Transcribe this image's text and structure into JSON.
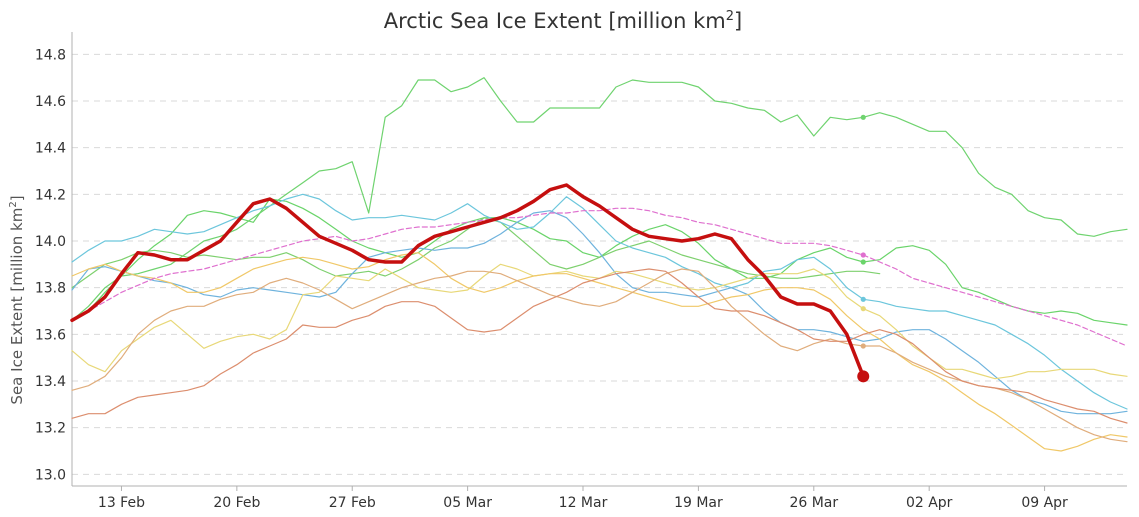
{
  "chart_data": {
    "type": "line",
    "title": "Arctic Sea Ice Extent [million km",
    "title_sup": "2",
    "title_end": "]",
    "ylabel": "Sea Ice Extent [million km",
    "ylabel_sup": "2",
    "ylabel_end": "]",
    "ylim": [
      12.95,
      14.87
    ],
    "yticks": [
      "13.0",
      "13.2",
      "13.4",
      "13.6",
      "13.8",
      "14.0",
      "14.2",
      "14.4",
      "14.6",
      "14.8"
    ],
    "xlim": [
      0,
      64
    ],
    "xticks": [
      {
        "day": 3,
        "label": "13 Feb"
      },
      {
        "day": 10,
        "label": "20 Feb"
      },
      {
        "day": 17,
        "label": "27 Feb"
      },
      {
        "day": 24,
        "label": "05 Mar"
      },
      {
        "day": 31,
        "label": "12 Mar"
      },
      {
        "day": 38,
        "label": "19 Mar"
      },
      {
        "day": 45,
        "label": "26 Mar"
      },
      {
        "day": 52,
        "label": "02 Apr"
      },
      {
        "day": 59,
        "label": "09 Apr"
      }
    ],
    "grid": true,
    "series": [
      {
        "color": "#6fd36f",
        "width": 1.2,
        "dash": "",
        "end_dot": true,
        "values": [
          13.66,
          13.72,
          13.8,
          13.85,
          13.86,
          13.88,
          13.9,
          13.95,
          14.0,
          14.02,
          14.05,
          14.1,
          14.15,
          14.2,
          14.25,
          14.3,
          14.31,
          14.34,
          14.12,
          14.53,
          14.58,
          14.69,
          14.69,
          14.64,
          14.66,
          14.7,
          14.6,
          14.51,
          14.51,
          14.57,
          14.57,
          14.57,
          14.57,
          14.66,
          14.69,
          14.68,
          14.68,
          14.68,
          14.66,
          14.6,
          14.59,
          14.57,
          14.56,
          14.51,
          14.54,
          14.45,
          14.53,
          14.52,
          14.53,
          14.55,
          14.53,
          14.5,
          14.47,
          14.47,
          14.4,
          14.29,
          14.23,
          14.2,
          14.13,
          14.1,
          14.09,
          14.03,
          14.02,
          14.04,
          14.05
        ]
      },
      {
        "color": "#6ad46a",
        "width": 1.2,
        "dash": "",
        "end_dot": true,
        "values": [
          13.66,
          13.7,
          13.78,
          13.85,
          13.92,
          13.98,
          14.03,
          14.11,
          14.13,
          14.12,
          14.1,
          14.08,
          14.18,
          14.17,
          14.14,
          14.1,
          14.05,
          14.0,
          13.97,
          13.95,
          13.93,
          13.95,
          14.0,
          14.05,
          14.08,
          14.1,
          14.1,
          14.08,
          14.05,
          14.01,
          14.0,
          13.95,
          13.93,
          13.98,
          14.02,
          14.05,
          14.07,
          14.04,
          13.99,
          13.92,
          13.88,
          13.84,
          13.84,
          13.86,
          13.92,
          13.95,
          13.97,
          13.93,
          13.91,
          13.92,
          13.97,
          13.98,
          13.96,
          13.9,
          13.8,
          13.78,
          13.75,
          13.72,
          13.7,
          13.69,
          13.7,
          13.69,
          13.66,
          13.65,
          13.64
        ]
      },
      {
        "color": "#7ed06e",
        "width": 1.2,
        "dash": "",
        "end_dot": false,
        "values": [
          13.8,
          13.85,
          13.9,
          13.92,
          13.95,
          13.96,
          13.95,
          13.93,
          13.94,
          13.93,
          13.92,
          13.93,
          13.93,
          13.95,
          13.92,
          13.88,
          13.85,
          13.86,
          13.87,
          13.85,
          13.88,
          13.92,
          13.97,
          14.0,
          14.05,
          14.1,
          14.08,
          14.02,
          13.96,
          13.9,
          13.88,
          13.9,
          13.93,
          13.96,
          13.98,
          14.0,
          13.97,
          13.94,
          13.92,
          13.9,
          13.88,
          13.86,
          13.85,
          13.84,
          13.84,
          13.85,
          13.86,
          13.87,
          13.87,
          13.86
        ]
      },
      {
        "color": "#6cc6dc",
        "width": 1.2,
        "dash": "",
        "end_dot": true,
        "values": [
          13.91,
          13.96,
          14.0,
          14.0,
          14.02,
          14.05,
          14.04,
          14.03,
          14.04,
          14.07,
          14.1,
          14.13,
          14.15,
          14.18,
          14.2,
          14.18,
          14.13,
          14.09,
          14.1,
          14.1,
          14.11,
          14.1,
          14.09,
          14.12,
          14.16,
          14.11,
          14.08,
          14.05,
          14.06,
          14.12,
          14.19,
          14.14,
          14.07,
          14.0,
          13.97,
          13.95,
          13.93,
          13.89,
          13.86,
          13.82,
          13.8,
          13.82,
          13.87,
          13.88,
          13.92,
          13.93,
          13.88,
          13.8,
          13.75,
          13.74,
          13.72,
          13.71,
          13.7,
          13.7,
          13.68,
          13.66,
          13.64,
          13.6,
          13.56,
          13.51,
          13.45,
          13.4,
          13.35,
          13.31,
          13.28
        ]
      },
      {
        "color": "#6fb3dd",
        "width": 1.2,
        "dash": "",
        "end_dot": false,
        "values": [
          13.79,
          13.88,
          13.89,
          13.87,
          13.85,
          13.83,
          13.82,
          13.8,
          13.77,
          13.76,
          13.79,
          13.8,
          13.79,
          13.78,
          13.77,
          13.76,
          13.78,
          13.86,
          13.93,
          13.95,
          13.96,
          13.97,
          13.96,
          13.97,
          13.97,
          13.99,
          14.03,
          14.08,
          14.12,
          14.13,
          14.1,
          14.03,
          13.95,
          13.86,
          13.8,
          13.78,
          13.78,
          13.77,
          13.76,
          13.78,
          13.8,
          13.77,
          13.7,
          13.65,
          13.62,
          13.62,
          13.61,
          13.59,
          13.57,
          13.58,
          13.61,
          13.62,
          13.62,
          13.58,
          13.53,
          13.48,
          13.42,
          13.36,
          13.32,
          13.3,
          13.27,
          13.26,
          13.26,
          13.26,
          13.27
        ]
      },
      {
        "color": "#e8d878",
        "width": 1.2,
        "dash": "",
        "end_dot": true,
        "values": [
          13.53,
          13.47,
          13.44,
          13.53,
          13.58,
          13.63,
          13.66,
          13.6,
          13.54,
          13.57,
          13.59,
          13.6,
          13.58,
          13.62,
          13.77,
          13.78,
          13.85,
          13.84,
          13.83,
          13.88,
          13.84,
          13.8,
          13.79,
          13.78,
          13.79,
          13.85,
          13.9,
          13.88,
          13.85,
          13.86,
          13.87,
          13.85,
          13.84,
          13.87,
          13.86,
          13.84,
          13.82,
          13.8,
          13.79,
          13.8,
          13.82,
          13.84,
          13.86,
          13.86,
          13.86,
          13.88,
          13.84,
          13.76,
          13.71,
          13.68,
          13.62,
          13.55,
          13.5,
          13.45,
          13.45,
          13.43,
          13.41,
          13.42,
          13.44,
          13.44,
          13.45,
          13.45,
          13.45,
          13.43,
          13.42
        ]
      },
      {
        "color": "#f0c868",
        "width": 1.2,
        "dash": "",
        "end_dot": false,
        "values": [
          13.85,
          13.88,
          13.9,
          13.87,
          13.85,
          13.84,
          13.82,
          13.78,
          13.78,
          13.8,
          13.84,
          13.88,
          13.9,
          13.92,
          13.93,
          13.92,
          13.9,
          13.88,
          13.89,
          13.92,
          13.94,
          13.95,
          13.9,
          13.84,
          13.8,
          13.78,
          13.8,
          13.83,
          13.85,
          13.86,
          13.86,
          13.84,
          13.82,
          13.8,
          13.78,
          13.76,
          13.74,
          13.72,
          13.72,
          13.74,
          13.76,
          13.77,
          13.79,
          13.8,
          13.8,
          13.79,
          13.75,
          13.68,
          13.62,
          13.58,
          13.52,
          13.47,
          13.44,
          13.4,
          13.35,
          13.3,
          13.26,
          13.21,
          13.16,
          13.11,
          13.1,
          13.12,
          13.15,
          13.17,
          13.16
        ]
      },
      {
        "color": "#e0ad7c",
        "width": 1.2,
        "dash": "",
        "end_dot": true,
        "values": [
          13.36,
          13.38,
          13.42,
          13.5,
          13.6,
          13.66,
          13.7,
          13.72,
          13.72,
          13.75,
          13.77,
          13.78,
          13.82,
          13.84,
          13.82,
          13.79,
          13.75,
          13.71,
          13.74,
          13.77,
          13.8,
          13.82,
          13.84,
          13.85,
          13.87,
          13.87,
          13.86,
          13.83,
          13.8,
          13.77,
          13.75,
          13.73,
          13.72,
          13.74,
          13.78,
          13.82,
          13.86,
          13.88,
          13.87,
          13.8,
          13.72,
          13.66,
          13.6,
          13.55,
          13.53,
          13.56,
          13.58,
          13.56,
          13.55,
          13.55,
          13.52,
          13.48,
          13.45,
          13.42,
          13.4,
          13.38,
          13.37,
          13.35,
          13.32,
          13.28,
          13.24,
          13.2,
          13.17,
          13.15,
          13.14
        ]
      },
      {
        "color": "#dc8e6e",
        "width": 1.2,
        "dash": "",
        "end_dot": false,
        "values": [
          13.24,
          13.26,
          13.26,
          13.3,
          13.33,
          13.34,
          13.35,
          13.36,
          13.38,
          13.43,
          13.47,
          13.52,
          13.55,
          13.58,
          13.64,
          13.63,
          13.63,
          13.66,
          13.68,
          13.72,
          13.74,
          13.74,
          13.72,
          13.67,
          13.62,
          13.61,
          13.62,
          13.67,
          13.72,
          13.75,
          13.78,
          13.82,
          13.84,
          13.86,
          13.87,
          13.88,
          13.87,
          13.82,
          13.76,
          13.71,
          13.7,
          13.7,
          13.68,
          13.65,
          13.62,
          13.58,
          13.57,
          13.57,
          13.6,
          13.62,
          13.6,
          13.56,
          13.5,
          13.44,
          13.4,
          13.38,
          13.37,
          13.36,
          13.35,
          13.32,
          13.3,
          13.28,
          13.27,
          13.24,
          13.22
        ]
      },
      {
        "color": "#df70cf",
        "width": 1.2,
        "dash": "5 3",
        "end_dot": true,
        "values": [
          13.66,
          13.7,
          13.74,
          13.78,
          13.81,
          13.84,
          13.86,
          13.87,
          13.88,
          13.9,
          13.92,
          13.94,
          13.96,
          13.98,
          14.0,
          14.01,
          14.02,
          14.0,
          14.01,
          14.03,
          14.05,
          14.06,
          14.06,
          14.07,
          14.08,
          14.09,
          14.1,
          14.1,
          14.11,
          14.12,
          14.12,
          14.13,
          14.13,
          14.14,
          14.14,
          14.13,
          14.11,
          14.1,
          14.08,
          14.07,
          14.05,
          14.03,
          14.01,
          13.99,
          13.99,
          13.99,
          13.98,
          13.96,
          13.94,
          13.91,
          13.88,
          13.84,
          13.82,
          13.8,
          13.78,
          13.76,
          13.74,
          13.72,
          13.7,
          13.68,
          13.66,
          13.64,
          13.61,
          13.58,
          13.55
        ]
      },
      {
        "color": "#c50f0f",
        "width": 3.5,
        "dash": "",
        "end_dot": true,
        "end_dot_big": true,
        "values": [
          13.66,
          13.7,
          13.76,
          13.86,
          13.95,
          13.94,
          13.92,
          13.92,
          13.96,
          14.0,
          14.08,
          14.16,
          14.18,
          14.14,
          14.08,
          14.02,
          13.99,
          13.96,
          13.92,
          13.91,
          13.91,
          13.98,
          14.02,
          14.04,
          14.06,
          14.08,
          14.1,
          14.13,
          14.17,
          14.22,
          14.24,
          14.19,
          14.15,
          14.1,
          14.05,
          14.02,
          14.01,
          14.0,
          14.01,
          14.03,
          14.01,
          13.92,
          13.85,
          13.76,
          13.73,
          13.73,
          13.7,
          13.6,
          13.42
        ]
      }
    ]
  }
}
